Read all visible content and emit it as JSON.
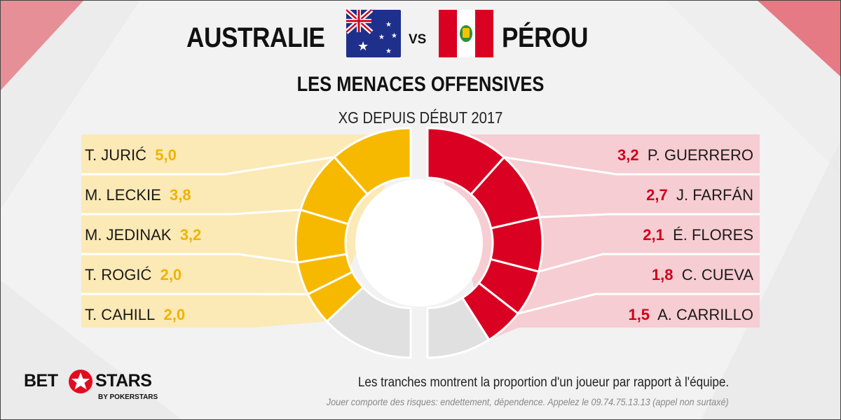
{
  "header": {
    "team_left": "AUSTRALIE",
    "vs": "VS",
    "team_right": "PÉROU",
    "subtitle": "LES MENACES OFFENSIVES",
    "metric": "XG DEPUIS DÉBUT 2017"
  },
  "colors": {
    "australia": "#f7b900",
    "peru": "#d90021",
    "rest": "#e0e0e0",
    "band_left": "#fbeab6",
    "band_right": "#f6cdd2"
  },
  "chart_data": {
    "type": "pie",
    "unit": "xG",
    "series": [
      {
        "team": "AUSTRALIE",
        "players": [
          "T. JURIĆ",
          "M. LECKIE",
          "M. JEDINAK",
          "T. ROGIĆ",
          "T. CAHILL"
        ],
        "labels": [
          "5,0",
          "3,8",
          "3,2",
          "2,0",
          "2,0"
        ],
        "values": [
          5.0,
          3.8,
          3.2,
          2.0,
          2.0
        ],
        "others_share": 0.26
      },
      {
        "team": "PÉROU",
        "players": [
          "P. GUERRERO",
          "J. FARFÁN",
          "É. FLORES",
          "C. CUEVA",
          "A. CARRILLO"
        ],
        "labels": [
          "3,2",
          "2,7",
          "2,1",
          "1,8",
          "1,5"
        ],
        "values": [
          3.2,
          2.7,
          2.1,
          1.8,
          1.5
        ],
        "others_share": 0.18
      }
    ]
  },
  "footer": {
    "note": "Les tranches montrent la proportion d'un joueur par rapport à l'équipe.",
    "disclaimer": "Jouer comporte des risques: endettement, dépendence. Appelez le 09.74.75.13.13 (appel non surtaxé)",
    "logo_bet": "BET",
    "logo_stars": "STARS",
    "logo_sub": "BY POKERSTARS"
  }
}
